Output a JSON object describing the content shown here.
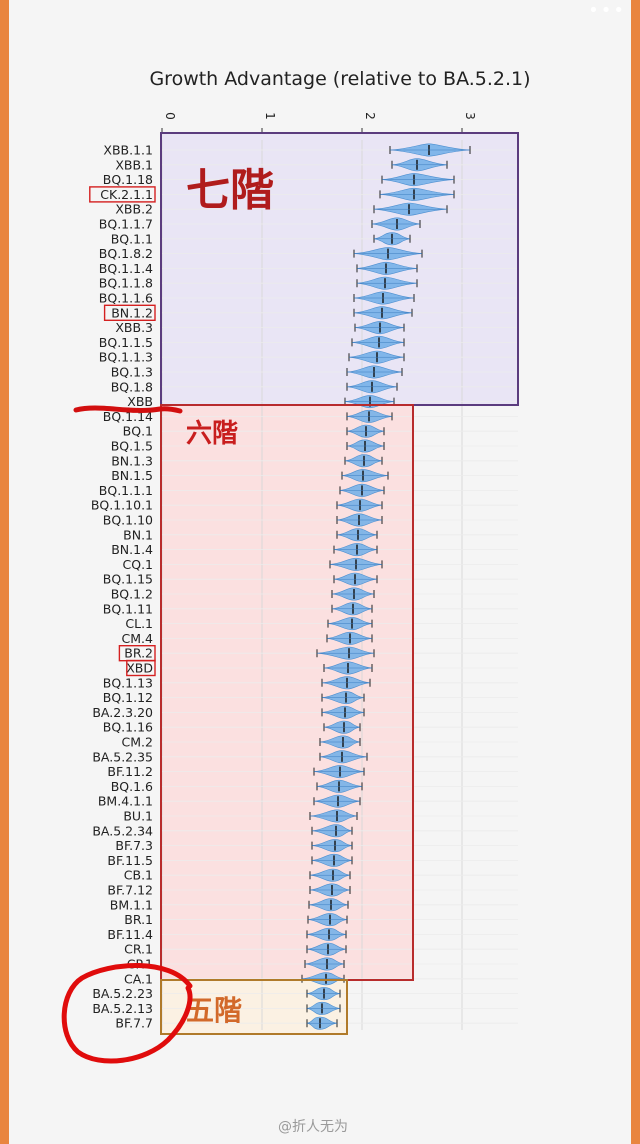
{
  "screen": {
    "more_icon": "more-dots-icon",
    "watermark": "@折人无为"
  },
  "chart_data": {
    "type": "violin",
    "title": "Growth Advantage (relative to BA.5.2.1)",
    "xlabel": "",
    "ylabel": "",
    "xlim": [
      0,
      3.5
    ],
    "x_ticks": [
      "0",
      "1",
      "2",
      "3"
    ],
    "grid": true,
    "categories": [
      "XBB.1.1",
      "XBB.1",
      "BQ.1.18",
      "CK.2.1.1",
      "XBB.2",
      "BQ.1.1.7",
      "BQ.1.1",
      "BQ.1.8.2",
      "BQ.1.1.4",
      "BQ.1.1.8",
      "BQ.1.1.6",
      "BN.1.2",
      "XBB.3",
      "BQ.1.1.5",
      "BQ.1.1.3",
      "BQ.1.3",
      "BQ.1.8",
      "XBB",
      "BQ.1.14",
      "BQ.1",
      "BQ.1.5",
      "BN.1.3",
      "BN.1.5",
      "BQ.1.1.1",
      "BQ.1.10.1",
      "BQ.1.10",
      "BN.1",
      "BN.1.4",
      "CQ.1",
      "BQ.1.15",
      "BQ.1.2",
      "BQ.1.11",
      "CL.1",
      "CM.4",
      "BR.2",
      "XBD",
      "BQ.1.13",
      "BQ.1.12",
      "BA.2.3.20",
      "BQ.1.16",
      "CM.2",
      "BA.5.2.35",
      "BF.11.2",
      "BQ.1.6",
      "BM.4.1.1",
      "BU.1",
      "BA.5.2.34",
      "BF.7.3",
      "BF.11.5",
      "CB.1",
      "BF.7.12",
      "BM.1.1",
      "BR.1",
      "BF.11.4",
      "CR.1",
      "CP.1",
      "CA.1",
      "BA.5.2.23",
      "BA.5.2.13",
      "BF.7.7"
    ],
    "medians": [
      2.67,
      2.55,
      2.52,
      2.52,
      2.47,
      2.35,
      2.3,
      2.26,
      2.24,
      2.23,
      2.21,
      2.2,
      2.18,
      2.17,
      2.15,
      2.12,
      2.1,
      2.08,
      2.07,
      2.04,
      2.03,
      2.02,
      2.01,
      2.0,
      1.98,
      1.97,
      1.96,
      1.95,
      1.94,
      1.93,
      1.92,
      1.91,
      1.9,
      1.88,
      1.87,
      1.86,
      1.85,
      1.84,
      1.83,
      1.82,
      1.81,
      1.8,
      1.78,
      1.77,
      1.76,
      1.75,
      1.74,
      1.73,
      1.72,
      1.71,
      1.7,
      1.69,
      1.68,
      1.67,
      1.66,
      1.65,
      1.64,
      1.62,
      1.6,
      1.58
    ],
    "lower": [
      2.28,
      2.3,
      2.2,
      2.18,
      2.12,
      2.1,
      2.12,
      1.92,
      1.95,
      1.95,
      1.92,
      1.92,
      1.93,
      1.9,
      1.87,
      1.85,
      1.85,
      1.83,
      1.85,
      1.85,
      1.85,
      1.83,
      1.8,
      1.78,
      1.75,
      1.75,
      1.75,
      1.72,
      1.68,
      1.72,
      1.7,
      1.7,
      1.66,
      1.65,
      1.55,
      1.62,
      1.6,
      1.6,
      1.6,
      1.62,
      1.58,
      1.58,
      1.52,
      1.55,
      1.52,
      1.48,
      1.5,
      1.5,
      1.5,
      1.48,
      1.48,
      1.47,
      1.46,
      1.45,
      1.45,
      1.43,
      1.4,
      1.45,
      1.45,
      1.45
    ],
    "upper": [
      3.08,
      2.85,
      2.92,
      2.92,
      2.85,
      2.58,
      2.48,
      2.6,
      2.55,
      2.55,
      2.52,
      2.5,
      2.42,
      2.42,
      2.42,
      2.4,
      2.35,
      2.32,
      2.3,
      2.22,
      2.22,
      2.2,
      2.26,
      2.22,
      2.2,
      2.2,
      2.15,
      2.15,
      2.2,
      2.15,
      2.12,
      2.1,
      2.1,
      2.1,
      2.12,
      2.1,
      2.08,
      2.02,
      2.02,
      1.98,
      1.98,
      2.05,
      2.02,
      2.0,
      1.98,
      1.95,
      1.9,
      1.9,
      1.9,
      1.88,
      1.88,
      1.86,
      1.85,
      1.84,
      1.84,
      1.82,
      1.82,
      1.78,
      1.78,
      1.75
    ],
    "highlighted": [
      "CK.2.1.1",
      "BN.1.2",
      "BR.2",
      "XBD"
    ],
    "violin_color": "#6eaee8",
    "tiers": [
      {
        "label": "七階",
        "from": "XBB.1.1",
        "to": "XBB",
        "border": "#5b3c7e",
        "fill": "#e9e5f5",
        "text_color": "#b01c1c"
      },
      {
        "label": "六階",
        "from": "BQ.1.14",
        "to": "CA.1",
        "border": "#b82c2c",
        "fill": "#fbe0e0",
        "text_color": "#c81e1e"
      },
      {
        "label": "五階",
        "from": "BA.5.2.23",
        "to": "BF.7.7",
        "border": "#b07a2a",
        "fill": "#fbf1e3",
        "text_color": "#d2692a"
      }
    ]
  }
}
